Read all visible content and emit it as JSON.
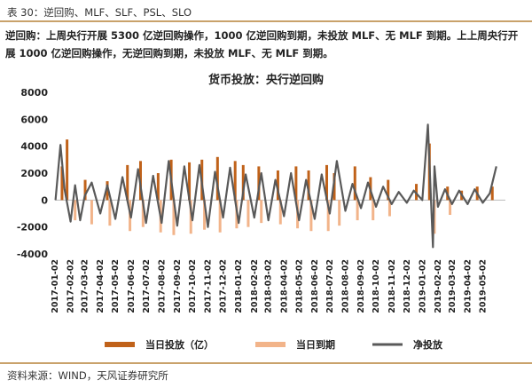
{
  "caption": "表 30：逆回购、MLF、SLF、PSL、SLO",
  "description": "逆回购：上周央行开展 5300 亿逆回购操作，1000 亿逆回购到期，未投放 MLF、无 MLF 到期。上上周央行开展 1000 亿逆回购操作，无逆回购到期，未投放 MLF、无 MLF 到期。",
  "source": "资料来源：WIND，天风证券研究所",
  "colors": {
    "injection": "#c0621a",
    "maturity": "#f2b48a",
    "net": "#595959",
    "border": "#c9a26b"
  },
  "chart_data": {
    "type": "bar",
    "title": "货币投放：央行逆回购",
    "xlabel": "",
    "ylabel": "",
    "ylim": [
      -4000,
      8000
    ],
    "yticks": [
      "8000",
      "6000",
      "4000",
      "2000",
      "0",
      "-2000",
      "-4000"
    ],
    "yticks_values": [
      8000,
      6000,
      4000,
      2000,
      0,
      -2000,
      -4000
    ],
    "x_tick_labels": [
      "2017-01-02",
      "2017-02-02",
      "2017-03-02",
      "2017-04-02",
      "2017-05-02",
      "2017-06-02",
      "2017-07-02",
      "2017-08-02",
      "2017-09-02",
      "2017-10-02",
      "2017-11-02",
      "2017-12-02",
      "2018-01-02",
      "2018-02-02",
      "2018-03-02",
      "2018-04-02",
      "2018-05-02",
      "2018-06-02",
      "2018-07-02",
      "2018-08-02",
      "2018-09-02",
      "2018-10-02",
      "2018-11-02",
      "2018-12-02",
      "2019-01-02",
      "2019-02-02",
      "2019-03-02",
      "2019-04-02",
      "2019-05-02"
    ],
    "legend": [
      {
        "name": "当日投放（亿）",
        "color": "#c0621a"
      },
      {
        "name": "当日到期",
        "color": "#f2b48a"
      },
      {
        "name": "净投放",
        "color": "#595959"
      }
    ],
    "series": [
      {
        "name": "当日投放（亿）",
        "x": [
          "2017-01-15",
          "2017-01-25",
          "2017-03-02",
          "2017-04-15",
          "2017-05-25",
          "2017-06-20",
          "2017-07-25",
          "2017-08-20",
          "2017-09-25",
          "2017-10-20",
          "2017-11-20",
          "2017-12-25",
          "2018-01-10",
          "2018-02-10",
          "2018-03-20",
          "2018-04-25",
          "2018-05-20",
          "2018-06-25",
          "2018-07-10",
          "2018-08-20",
          "2018-09-20",
          "2018-10-25",
          "2018-12-20",
          "2019-01-15",
          "2019-02-20",
          "2019-03-20",
          "2019-04-20",
          "2019-05-20"
        ],
        "values": [
          2500,
          4500,
          1500,
          1400,
          2600,
          2900,
          2000,
          3000,
          2800,
          3000,
          3200,
          2900,
          2600,
          2500,
          2200,
          2500,
          2200,
          2600,
          2000,
          2500,
          1700,
          1500,
          1200,
          4200,
          1000,
          700,
          1000,
          1000
        ]
      },
      {
        "name": "当日到期",
        "x": [
          "2017-02-10",
          "2017-03-15",
          "2017-04-20",
          "2017-05-30",
          "2017-06-25",
          "2017-07-30",
          "2017-08-25",
          "2017-09-28",
          "2017-10-25",
          "2017-11-25",
          "2017-12-28",
          "2018-01-20",
          "2018-02-15",
          "2018-03-25",
          "2018-04-28",
          "2018-05-25",
          "2018-06-28",
          "2018-07-20",
          "2018-08-25",
          "2018-09-25",
          "2018-10-28",
          "2019-01-25",
          "2019-02-25"
        ],
        "values": [
          -1500,
          -1800,
          -1900,
          -2300,
          -2000,
          -2400,
          -2600,
          -2500,
          -2200,
          -2400,
          -2100,
          -2000,
          -1700,
          -1800,
          -2100,
          -2300,
          -2300,
          -1900,
          -1500,
          -1500,
          -1200,
          -2500,
          -1100
        ]
      },
      {
        "name": "净投放",
        "x": [
          "2017-01-02",
          "2017-01-12",
          "2017-01-20",
          "2017-02-01",
          "2017-02-10",
          "2017-02-20",
          "2017-03-01",
          "2017-03-15",
          "2017-04-01",
          "2017-04-15",
          "2017-05-01",
          "2017-05-15",
          "2017-06-01",
          "2017-06-15",
          "2017-07-01",
          "2017-07-15",
          "2017-08-01",
          "2017-08-15",
          "2017-09-01",
          "2017-09-15",
          "2017-10-01",
          "2017-10-15",
          "2017-11-01",
          "2017-11-15",
          "2017-12-01",
          "2017-12-15",
          "2018-01-01",
          "2018-01-15",
          "2018-02-01",
          "2018-02-15",
          "2018-03-01",
          "2018-03-15",
          "2018-04-01",
          "2018-04-15",
          "2018-05-01",
          "2018-05-15",
          "2018-06-01",
          "2018-06-15",
          "2018-07-01",
          "2018-07-15",
          "2018-08-01",
          "2018-08-15",
          "2018-09-01",
          "2018-09-15",
          "2018-10-01",
          "2018-10-15",
          "2018-11-01",
          "2018-11-15",
          "2018-12-01",
          "2018-12-15",
          "2019-01-01",
          "2019-01-12",
          "2019-01-22",
          "2019-01-25",
          "2019-02-01",
          "2019-02-15",
          "2019-03-01",
          "2019-03-15",
          "2019-04-01",
          "2019-04-15",
          "2019-05-01",
          "2019-05-15",
          "2019-05-28"
        ],
        "values": [
          0,
          4100,
          800,
          -1600,
          1100,
          -1500,
          300,
          1300,
          -1000,
          1100,
          -1400,
          1700,
          -1300,
          2300,
          -1700,
          1800,
          -1700,
          2900,
          -1900,
          2500,
          -1500,
          2600,
          -2000,
          2100,
          -1300,
          2400,
          -1700,
          1900,
          -1300,
          2000,
          -1500,
          1500,
          -1200,
          2000,
          -1500,
          1500,
          -1400,
          1900,
          -1000,
          2900,
          -800,
          1200,
          -600,
          1300,
          -500,
          1000,
          -300,
          600,
          -200,
          700,
          0,
          5600,
          -3500,
          2500,
          -500,
          800,
          -300,
          700,
          -300,
          800,
          -200,
          500,
          2500
        ]
      }
    ]
  }
}
